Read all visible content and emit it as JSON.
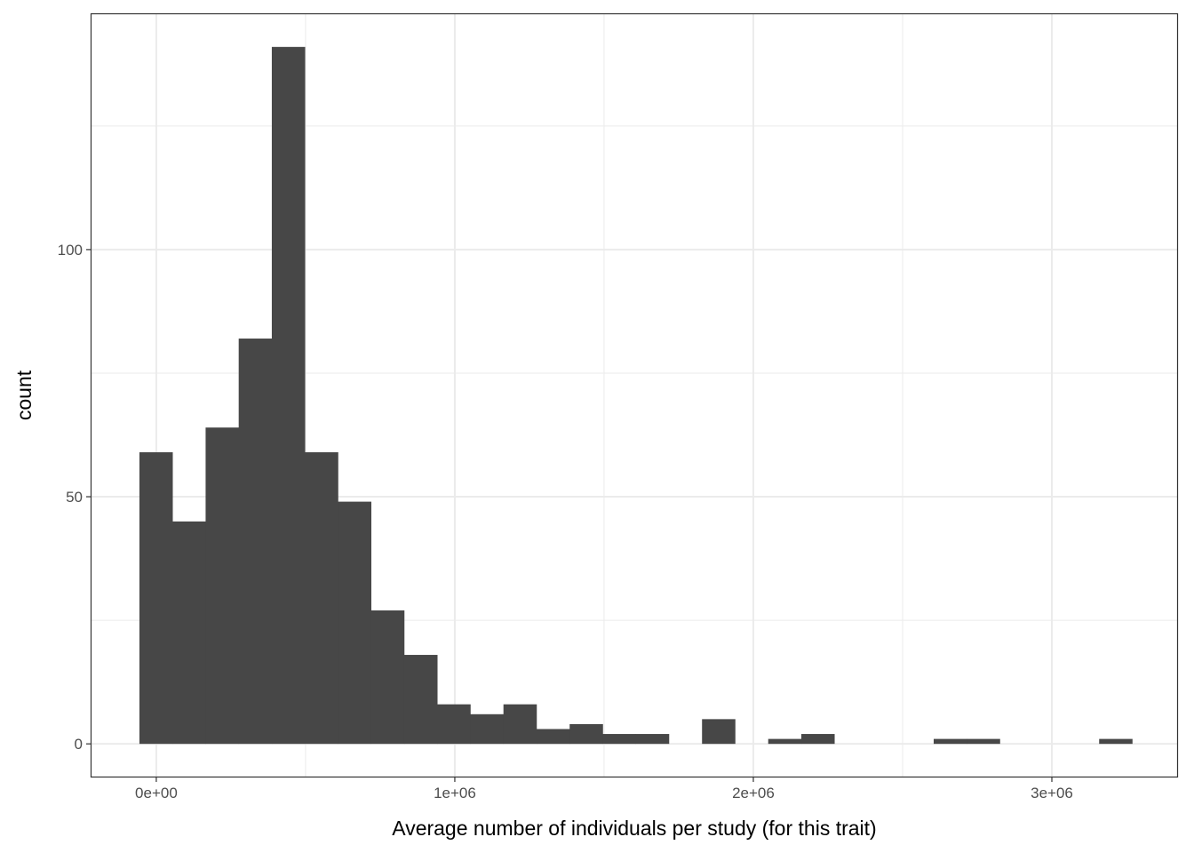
{
  "chart_data": {
    "type": "histogram",
    "title": "",
    "xlabel": "Average number of individuals per study (for this trait)",
    "ylabel": "count",
    "xlim": [
      -220000,
      3422600
    ],
    "ylim": [
      -6.8,
      147.8
    ],
    "bin_start": -56500,
    "bin_width": 110860,
    "counts": [
      59,
      45,
      64,
      82,
      141,
      59,
      49,
      27,
      18,
      8,
      6,
      8,
      3,
      4,
      2,
      2,
      0,
      5,
      0,
      1,
      2,
      0,
      0,
      0,
      1,
      1,
      0,
      0,
      0,
      1
    ],
    "x_ticks": [
      0,
      1000000,
      2000000,
      3000000
    ],
    "x_tick_labels": [
      "0e+00",
      "1e+06",
      "2e+06",
      "3e+06"
    ],
    "y_ticks": [
      0,
      50,
      100
    ],
    "y_tick_labels": [
      "0",
      "50",
      "100"
    ],
    "grid": true,
    "bar_color": "#474747",
    "grid_color": "#ebebeb"
  }
}
